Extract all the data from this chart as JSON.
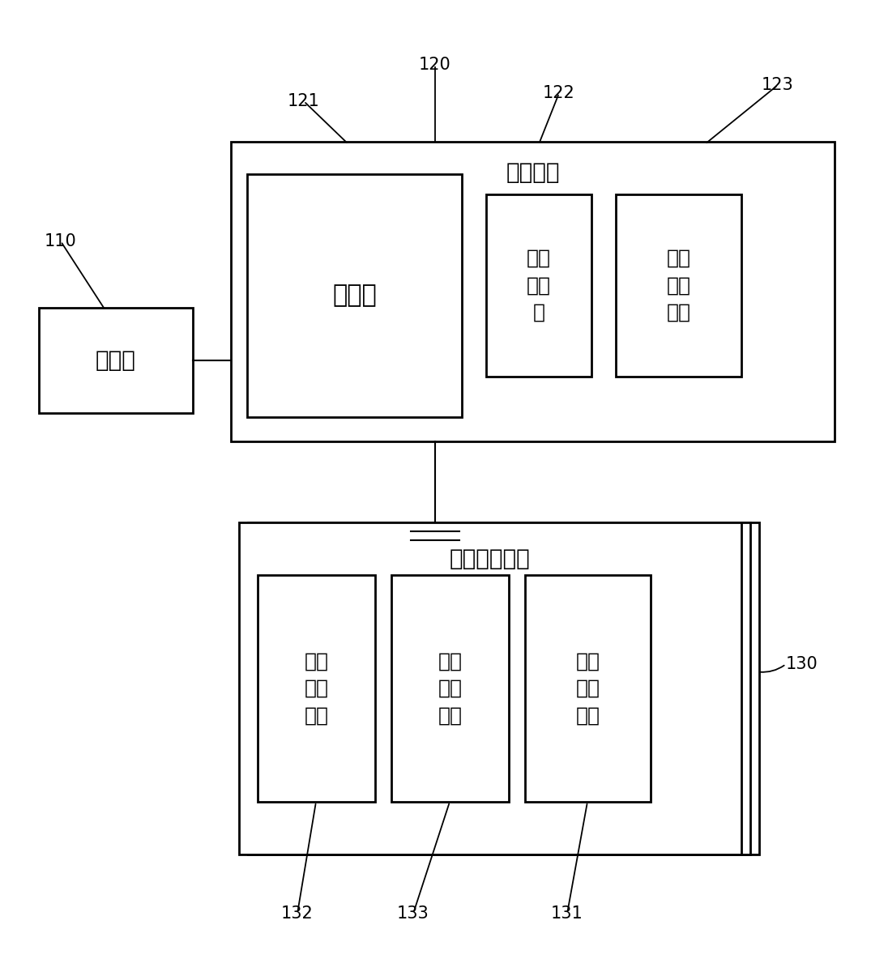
{
  "bg_color": "#ffffff",
  "label_110": "110",
  "label_120": "120",
  "label_121": "121",
  "label_122": "122",
  "label_123": "123",
  "label_130": "130",
  "label_131": "131",
  "label_132": "132",
  "label_133": "133",
  "text_client": "客户端",
  "text_compute_center": "计算中心",
  "text_event_lib": "事件库",
  "text_resource_scheduler": "资源\n调度\n器",
  "text_container_env1": "容器\n运行\n环境",
  "text_edge_node": "边缘工作节点",
  "text_video_module": "视频\n对接\n模块",
  "text_task_module": "任务\n执行\n模块",
  "text_container_env2": "容器\n运行\n环境",
  "box_color": "#000000",
  "text_color": "#000000",
  "line_color": "#000000",
  "fig_w": 10.75,
  "fig_h": 12.1,
  "dpi": 100
}
